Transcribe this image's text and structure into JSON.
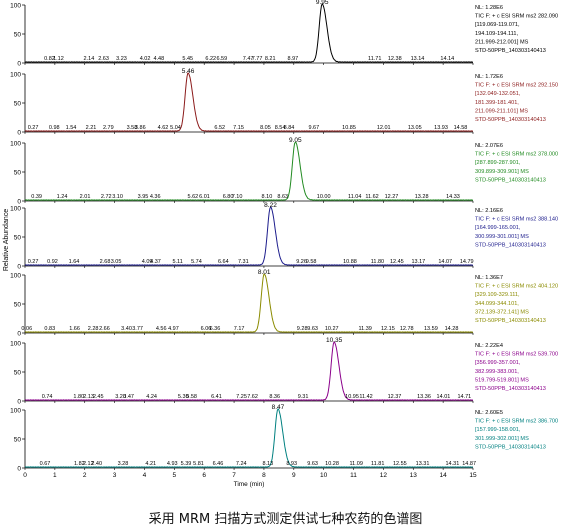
{
  "caption": "采用 MRM 扫描方式测定供试七种农药的色谱图",
  "chart_data": {
    "type": "line",
    "xlabel": "Time (min)",
    "ylabel": "Relative Abundance",
    "xlim": [
      0,
      15
    ],
    "ylim": [
      0,
      100
    ],
    "x_ticks": [
      0,
      1,
      2,
      3,
      4,
      5,
      6,
      7,
      8,
      9,
      10,
      11,
      12,
      13,
      14,
      15
    ],
    "y_ticks": [
      0,
      50,
      100
    ],
    "panels": [
      {
        "color": "#000000",
        "peak_rt": 9.95,
        "peak_label": "9.95",
        "noise_labels": [
          "0.82",
          "1.12",
          "2.14",
          "2.63",
          "3.23",
          "4.02",
          "4.48",
          "5.45",
          "6.22",
          "6.59",
          "7.47",
          "7.77",
          "8.21",
          "8.97",
          "11.71",
          "12.38",
          "13.14",
          "14.14"
        ],
        "info": [
          "NL: 1.28E6",
          "TIC F: + c ESI SRM ms2 282.090",
          "[119.069-119.071,",
          "194.109-194.111,",
          "211.999-212.001] MS",
          "STD-50PPB_140303140413"
        ]
      },
      {
        "color": "#8b1a1a",
        "peak_rt": 5.46,
        "peak_label": "5.46",
        "noise_labels": [
          "0.27",
          "0.98",
          "1.54",
          "2.21",
          "2.79",
          "3.58",
          "3.86",
          "4.62",
          "5.04",
          "6.52",
          "7.15",
          "8.05",
          "8.54",
          "8.84",
          "9.67",
          "10.85",
          "12.01",
          "13.05",
          "13.93",
          "14.58"
        ],
        "info": [
          "NL: 1.72E6",
          "TIC F: + c ESI SRM ms2 292.150",
          "[132.049-132.051,",
          "181.399-181.401,",
          "211.099-211.101] MS",
          "STD-50PPB_140303140413"
        ]
      },
      {
        "color": "#228b22",
        "peak_rt": 9.05,
        "peak_label": "9.05",
        "noise_labels": [
          "0.39",
          "1.24",
          "2.01",
          "2.72",
          "3.10",
          "3.95",
          "4.36",
          "5.62",
          "6.01",
          "6.80",
          "7.10",
          "8.10",
          "8.63",
          "10.00",
          "11.04",
          "11.62",
          "12.27",
          "13.28",
          "14.33"
        ],
        "info": [
          "NL: 2.07E6",
          "TIC F: + c ESI SRM ms2 378.000",
          "[287.899-287.901,",
          "309.899-309.901] MS",
          "STD-50PPB_140303140413"
        ]
      },
      {
        "color": "#1c1c8c",
        "peak_rt": 8.22,
        "peak_label": "8.22",
        "noise_labels": [
          "0.27",
          "0.92",
          "1.64",
          "2.68",
          "3.05",
          "4.09",
          "4.37",
          "5.11",
          "5.74",
          "6.64",
          "7.31",
          "9.26",
          "9.58",
          "10.88",
          "11.80",
          "12.45",
          "13.17",
          "14.07",
          "14.79"
        ],
        "info": [
          "NL: 2.16E6",
          "TIC F: + c ESI SRM ms2 388.140",
          "[164.999-165.001,",
          "300.999-301.001] MS",
          "STD-50PPB_140303140413"
        ]
      },
      {
        "color": "#8b8b00",
        "peak_rt": 8.01,
        "peak_label": "8.01",
        "noise_labels": [
          "0.06",
          "0.83",
          "1.66",
          "2.28",
          "2.66",
          "3.40",
          "3.77",
          "4.56",
          "4.97",
          "6.06",
          "6.36",
          "7.17",
          "9.28",
          "9.63",
          "10.27",
          "11.39",
          "12.15",
          "12.78",
          "13.59",
          "14.28"
        ],
        "info": [
          "NL: 1.36E7",
          "TIC F: + c ESI SRM ms2 404.120",
          "[329.109-329.111,",
          "344.099-344.101,",
          "372.139-372.141] MS",
          "STD-50PPB_140303140413"
        ]
      },
      {
        "color": "#8b008b",
        "peak_rt": 10.35,
        "peak_label": "10.35",
        "noise_labels": [
          "0.74",
          "1.80",
          "2.13",
          "2.45",
          "3.20",
          "3.47",
          "4.24",
          "5.30",
          "5.58",
          "6.41",
          "7.25",
          "7.62",
          "8.36",
          "9.31",
          "10.95",
          "11.42",
          "12.37",
          "13.36",
          "14.01",
          "14.71"
        ],
        "info": [
          "NL: 2.22E4",
          "TIC F: + c ESI SRM ms2 539.700",
          "[356.999-357.001,",
          "382.999-383.001,",
          "519.799-519.801] MS",
          "STD-50PPB_140303140413"
        ]
      },
      {
        "color": "#008080",
        "peak_rt": 8.47,
        "peak_label": "8.47",
        "noise_labels": [
          "0.67",
          "1.82",
          "2.12",
          "2.40",
          "3.28",
          "4.21",
          "4.93",
          "5.39",
          "5.81",
          "6.46",
          "7.24",
          "8.13",
          "8.93",
          "9.63",
          "10.28",
          "11.09",
          "11.81",
          "12.55",
          "13.31",
          "14.31",
          "14.87"
        ],
        "info": [
          "NL: 2.60E5",
          "TIC F: + c ESI SRM ms2 386.700",
          "[157.999-158.001,",
          "301.999-302.001] MS",
          "STD-50PPB_140303140413"
        ]
      }
    ]
  }
}
